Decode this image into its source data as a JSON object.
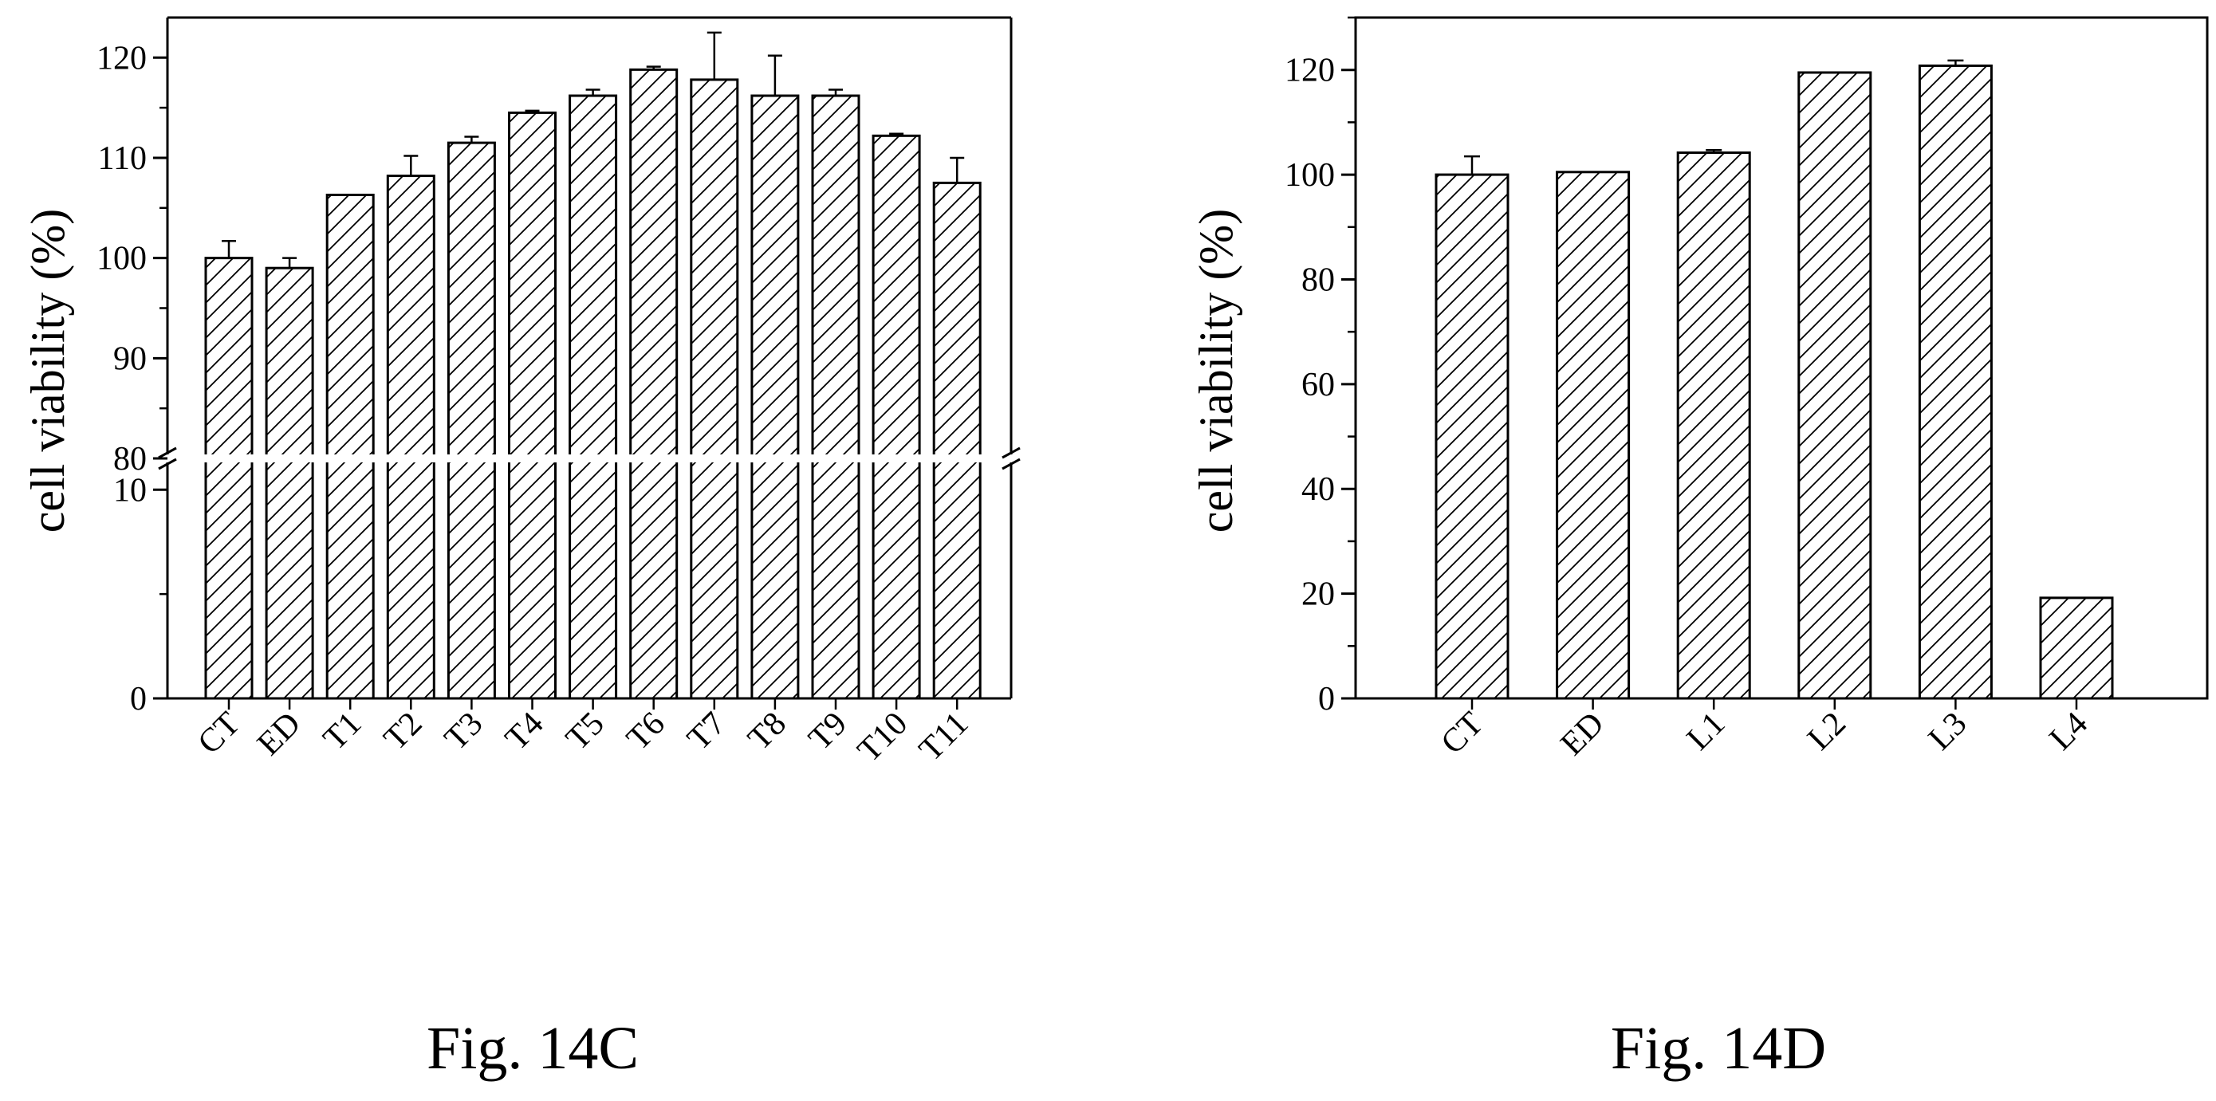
{
  "charts": [
    {
      "id": "fig-14c",
      "caption": "Fig. 14C",
      "ylabel": "cell viability (%)",
      "y_tick_labels": [
        "0",
        "10",
        "80",
        "90",
        "100",
        "110",
        "120"
      ]
    },
    {
      "id": "fig-14d",
      "caption": "Fig. 14D",
      "ylabel": "cell viability (%)",
      "y_tick_labels": [
        "0",
        "20",
        "40",
        "60",
        "80",
        "100",
        "120"
      ]
    }
  ],
  "chart_data": [
    {
      "type": "bar",
      "title": "",
      "caption": "Fig. 14C",
      "xlabel": "",
      "ylabel": "cell viability (%)",
      "categories": [
        "CT",
        "ED",
        "T1",
        "T2",
        "T3",
        "T4",
        "T5",
        "T6",
        "T7",
        "T8",
        "T9",
        "T10",
        "T11"
      ],
      "values": [
        100.0,
        99.0,
        106.3,
        108.2,
        111.5,
        114.5,
        116.2,
        118.8,
        117.8,
        116.2,
        116.2,
        112.2,
        107.5
      ],
      "errors": [
        1.7,
        1.0,
        0,
        2.0,
        0.6,
        0.2,
        0.6,
        0.3,
        4.7,
        4.0,
        0.6,
        0.2,
        2.5
      ],
      "yaxis_break": [
        11.5,
        80
      ],
      "ylim": [
        0,
        124
      ],
      "yticks": [
        0,
        10,
        80,
        90,
        100,
        110,
        120
      ],
      "grid": false,
      "legend": "none",
      "bar_fill": "diagonal-hatch"
    },
    {
      "type": "bar",
      "title": "",
      "caption": "Fig. 14D",
      "xlabel": "",
      "ylabel": "cell viability (%)",
      "categories": [
        "CT",
        "ED",
        "L1",
        "L2",
        "L3",
        "L4"
      ],
      "values": [
        100.0,
        100.5,
        104.2,
        119.5,
        120.8,
        19.2
      ],
      "errors": [
        3.5,
        0,
        0.5,
        0,
        1.0,
        0
      ],
      "ylim": [
        0,
        130
      ],
      "yticks": [
        0,
        20,
        40,
        60,
        80,
        100,
        120
      ],
      "grid": false,
      "legend": "none",
      "bar_fill": "diagonal-hatch"
    }
  ]
}
